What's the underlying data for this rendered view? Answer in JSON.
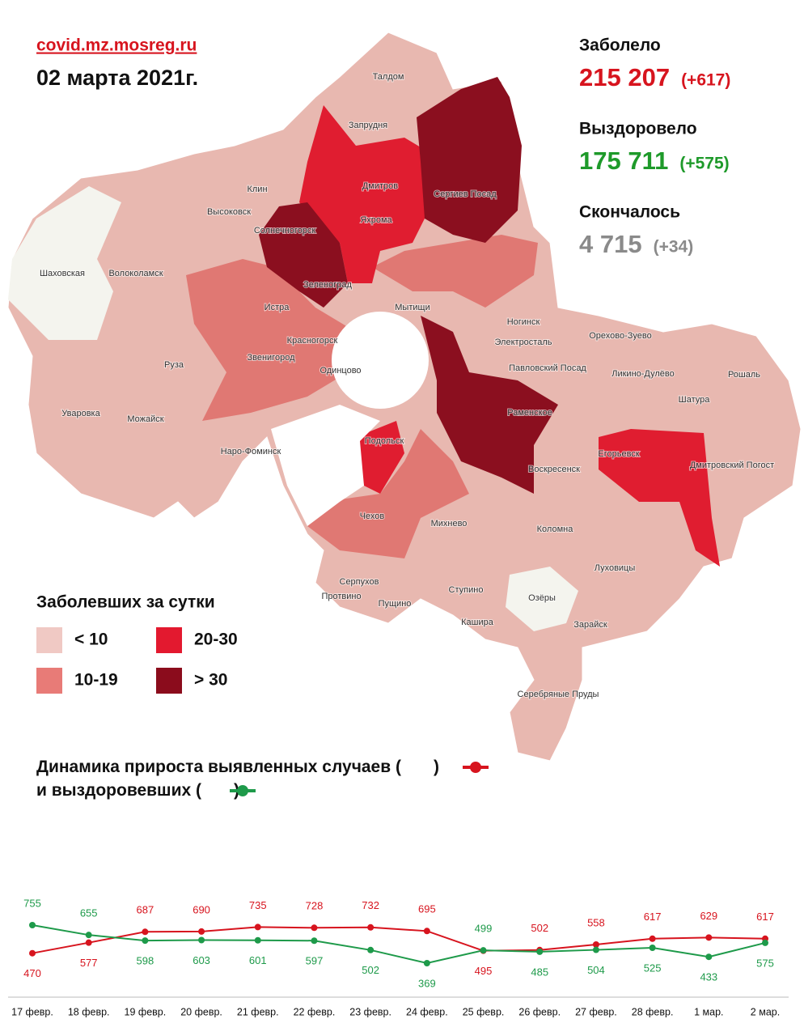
{
  "header": {
    "site": "covid.mz.mosreg.ru",
    "date": "02 марта 2021г."
  },
  "stats": [
    {
      "label": "Заболело",
      "value": "215 207",
      "change": "(+617)",
      "color": "#d7141e"
    },
    {
      "label": "Выздоровело",
      "value": "175 711",
      "change": "(+575)",
      "color": "#1e9a2a"
    },
    {
      "label": "Скончалось",
      "value": "4 715",
      "change": "(+34)",
      "color": "#8a8a8a"
    }
  ],
  "map": {
    "legend_title": "Заболевших за сутки",
    "legend": [
      {
        "label": "< 10",
        "color": "#f0c9c4"
      },
      {
        "label": "10-19",
        "color": "#e87b77"
      },
      {
        "label": "20-30",
        "color": "#e3192f"
      },
      {
        "label": "> 30",
        "color": "#8b0c1c"
      }
    ],
    "places": [
      "Талдом",
      "Запрудня",
      "Дмитров",
      "Яхрома",
      "Сергиев Посад",
      "Клин",
      "Высоковск",
      "Солнечногорск",
      "Шаховская",
      "Волоколамск",
      "Зеленоград",
      "Мытищи",
      "Истра",
      "Красногорск",
      "Ногинск",
      "Электросталь",
      "Орехово-Зуево",
      "Звенигород",
      "Руза",
      "Одинцово",
      "Павловский Посад",
      "Ликино-Дулёво",
      "Рошаль",
      "Шатура",
      "Уваровка",
      "Можайск",
      "Раменское",
      "Наро-Фоминск",
      "Подольск",
      "Егорьевск",
      "Дмитровский Погост",
      "Воскресенск",
      "Чехов",
      "Михнево",
      "Коломна",
      "Луховицы",
      "Серпухов",
      "Протвино",
      "Пущино",
      "Ступино",
      "Озёры",
      "Кашира",
      "Зарайск",
      "Серебряные Пруды"
    ]
  },
  "chart_data": {
    "type": "line",
    "title": [
      "Динамика прироста выявленных случаев (",
      ")",
      "и выздоровевших (",
      ")"
    ],
    "categories": [
      "17 февр.",
      "18 февр.",
      "19 февр.",
      "20 февр.",
      "21 февр.",
      "22 февр.",
      "23 февр.",
      "24 февр.",
      "25 февр.",
      "26 февр.",
      "27 февр.",
      "28 февр.",
      "1 мар.",
      "2 мар."
    ],
    "series": [
      {
        "color": "#d7141e",
        "values": [
          470,
          577,
          687,
          690,
          735,
          728,
          732,
          695,
          495,
          502,
          558,
          617,
          629,
          617
        ]
      },
      {
        "color": "#1e9a4a",
        "values": [
          755,
          655,
          598,
          603,
          601,
          597,
          502,
          369,
          499,
          485,
          504,
          525,
          433,
          575
        ]
      }
    ]
  }
}
